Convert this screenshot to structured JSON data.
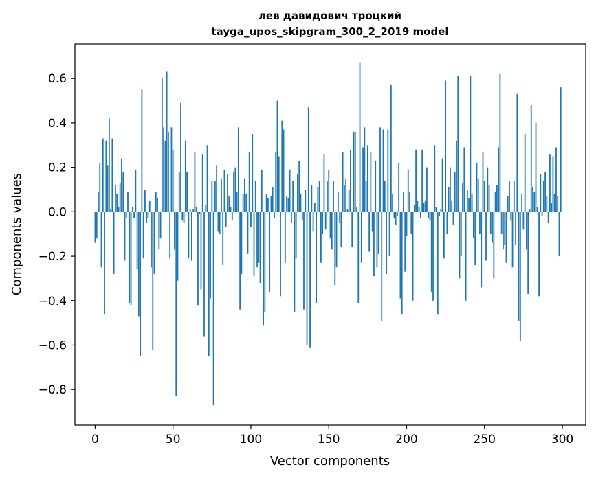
{
  "chart_data": {
    "type": "bar",
    "title": "лев давидович троцкий",
    "subtitle": "tayga_upos_skipgram_300_2_2019 model",
    "xlabel": "Vector components",
    "ylabel": "Components values",
    "xlim": [
      -13,
      315
    ],
    "ylim": [
      -0.96,
      0.755
    ],
    "x_ticks": [
      0,
      50,
      100,
      150,
      200,
      250,
      300
    ],
    "x_tick_labels": [
      "0",
      "50",
      "100",
      "150",
      "200",
      "250",
      "300"
    ],
    "y_ticks": [
      -0.8,
      -0.6,
      -0.4,
      -0.2,
      0.0,
      0.2,
      0.4,
      0.6
    ],
    "y_tick_labels": [
      "−0.8",
      "−0.6",
      "−0.4",
      "−0.2",
      "0.0",
      "0.2",
      "0.4",
      "0.6"
    ],
    "bar_color": "#1f77b4",
    "grid": false,
    "values": [
      -0.14,
      -0.12,
      0.09,
      0.22,
      -0.25,
      0.33,
      -0.46,
      0.32,
      0.21,
      0.42,
      0.01,
      0.33,
      -0.28,
      0.12,
      0.08,
      0.02,
      0.13,
      0.24,
      0.18,
      -0.22,
      -0.03,
      0.09,
      -0.41,
      -0.42,
      0.02,
      -0.03,
      0.19,
      -0.26,
      -0.47,
      -0.65,
      0.55,
      -0.21,
      0.1,
      -0.05,
      -0.03,
      0.05,
      -0.25,
      -0.62,
      -0.28,
      0.09,
      0.06,
      -0.17,
      -0.12,
      0.6,
      0.38,
      0.32,
      0.63,
      0.36,
      -0.21,
      0.38,
      0.28,
      -0.17,
      -0.83,
      -0.31,
      0.18,
      0.49,
      -0.04,
      -0.05,
      0.32,
      0.18,
      -0.21,
      0.01,
      -0.22,
      0.01,
      0.27,
      0.02,
      -0.42,
      -0.01,
      -0.35,
      0.26,
      -0.56,
      0.03,
      0.3,
      -0.65,
      -0.39,
      0.14,
      -0.87,
      0.14,
      0.21,
      -0.09,
      -0.1,
      0.15,
      -0.24,
      0.19,
      -0.07,
      0.17,
      0.07,
      0.02,
      -0.04,
      0.18,
      0.2,
      0.09,
      0.38,
      -0.44,
      -0.28,
      0.08,
      0.15,
      0.08,
      -0.19,
      0.27,
      -0.07,
      0.35,
      -0.29,
      0.14,
      -0.25,
      -0.23,
      -0.32,
      0.19,
      -0.51,
      -0.45,
      0.08,
      0.06,
      -0.36,
      0.07,
      0.11,
      -0.03,
      0.27,
      0.5,
      0.25,
      -0.38,
      0.41,
      0.37,
      -0.23,
      0.07,
      0.06,
      0.19,
      -0.05,
      0.14,
      -0.45,
      -0.21,
      0.17,
      0.23,
      0.08,
      -0.04,
      -0.44,
      0.1,
      -0.6,
      0.47,
      -0.61,
      0.12,
      -0.09,
      0.04,
      -0.41,
      0.11,
      0.14,
      -0.23,
      -0.1,
      0.26,
      -0.08,
      0.14,
      0.19,
      -0.12,
      -0.17,
      0.14,
      -0.33,
      -0.25,
      0.09,
      -0.05,
      -0.16,
      0.27,
      0.12,
      0.15,
      0.01,
      0.1,
      0.28,
      -0.16,
      0.36,
      0.36,
      0.02,
      -0.41,
      0.67,
      -0.23,
      0.29,
      0.38,
      0.14,
      0.3,
      -0.18,
      0.27,
      -0.09,
      -0.29,
      0.23,
      -0.25,
      -0.19,
      0.38,
      -0.49,
      0.37,
      0.14,
      -0.28,
      0.37,
      -0.2,
      0.57,
      0.08,
      -0.03,
      -0.06,
      -0.02,
      0.22,
      -0.39,
      -0.46,
      0.09,
      -0.27,
      -0.11,
      0.19,
      0.09,
      -0.1,
      -0.4,
      0.03,
      0.28,
      0.05,
      0.02,
      -0.03,
      0.28,
      0.04,
      0.05,
      0.2,
      -0.03,
      -0.04,
      -0.36,
      -0.4,
      0.3,
      0.02,
      -0.46,
      -0.02,
      0.01,
      0.24,
      -0.21,
      0.59,
      -0.1,
      0.11,
      0.2,
      0.05,
      -0.06,
      0.18,
      0.32,
      0.61,
      -0.3,
      -0.2,
      0.13,
      0.29,
      -0.4,
      0.1,
      0.06,
      0.61,
      0.08,
      -0.12,
      -0.24,
      0.22,
      0.15,
      -0.1,
      -0.34,
      0.27,
      0.14,
      -0.22,
      0.2,
      0.12,
      -0.1,
      -0.14,
      -0.3,
      0.09,
      0.12,
      0.29,
      0.62,
      -0.1,
      -0.17,
      -0.15,
      -0.23,
      0.07,
      0.14,
      -0.04,
      -0.25,
      0.14,
      -0.15,
      0.53,
      -0.49,
      -0.58,
      0.08,
      -0.08,
      0.35,
      -0.17,
      -0.37,
      0.01,
      0.48,
      0.11,
      0.09,
      0.4,
      0.02,
      -0.38,
      0.17,
      -0.02,
      0.14,
      0.18,
      0.07,
      -0.05,
      0.26,
      0.04,
      0.25,
      0.08,
      0.29,
      0.07,
      -0.2,
      0.56
    ]
  }
}
